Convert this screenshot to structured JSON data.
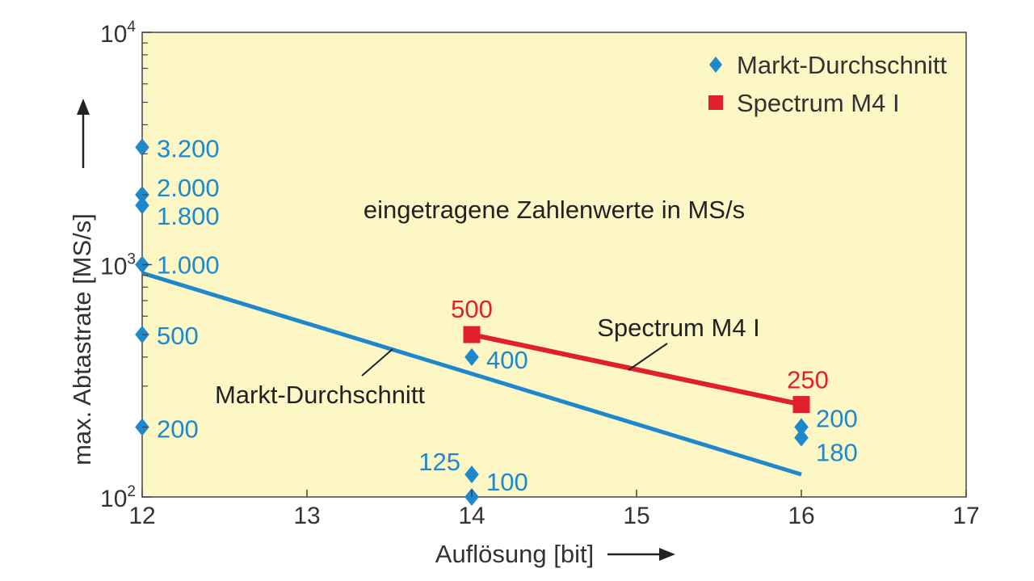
{
  "chart_data": {
    "type": "scatter",
    "xlabel": "Auflösung [bit]",
    "ylabel": "max. Abtastrate [MS/s]",
    "xlim": [
      12,
      17
    ],
    "ylim": [
      100,
      10000
    ],
    "yscale": "log",
    "x_ticks": [
      "12",
      "13",
      "14",
      "15",
      "16",
      "17"
    ],
    "y_ticks": [
      {
        "base": "10",
        "exp": "2",
        "value": 100
      },
      {
        "base": "10",
        "exp": "3",
        "value": 1000
      },
      {
        "base": "10",
        "exp": "4",
        "value": 10000
      }
    ],
    "grid": false,
    "legend": {
      "position": "top-right",
      "entries": [
        {
          "name": "Markt-Durchschnitt",
          "marker": "diamond",
          "color": "#1e88cc"
        },
        {
          "name": "Spectrum M4 I",
          "marker": "square",
          "color": "#e0202a"
        }
      ]
    },
    "colors": {
      "background": "#fdf7c6",
      "market": "#1e88cc",
      "spectrum": "#e0202a"
    },
    "series": [
      {
        "name": "Markt-Durchschnitt",
        "marker": "diamond",
        "points": [
          {
            "x": 12,
            "y": 3200,
            "label": "3.200"
          },
          {
            "x": 12,
            "y": 2000,
            "label": "2.000"
          },
          {
            "x": 12,
            "y": 1800,
            "label": "1.800"
          },
          {
            "x": 12,
            "y": 1000,
            "label": "1.000"
          },
          {
            "x": 12,
            "y": 500,
            "label": "500"
          },
          {
            "x": 12,
            "y": 200,
            "label": "200"
          },
          {
            "x": 14,
            "y": 400,
            "label": "400"
          },
          {
            "x": 14,
            "y": 125,
            "label": "125"
          },
          {
            "x": 14,
            "y": 100,
            "label": "100"
          },
          {
            "x": 16,
            "y": 200,
            "label": "200"
          },
          {
            "x": 16,
            "y": 180,
            "label": "180"
          }
        ],
        "trendline": [
          {
            "x": 12,
            "y": 920
          },
          {
            "x": 16,
            "y": 125
          }
        ]
      },
      {
        "name": "Spectrum M4 I",
        "marker": "square",
        "points": [
          {
            "x": 14,
            "y": 500,
            "label": "500"
          },
          {
            "x": 16,
            "y": 250,
            "label": "250"
          }
        ]
      }
    ],
    "annotations": [
      {
        "text": "eingetragene Zahlenwerte in MS/s",
        "x": 14.5,
        "y": 1500
      },
      {
        "text": "Markt-Durchschnitt",
        "x": 13.45,
        "y": 300
      },
      {
        "text": "Spectrum M4 I",
        "x": 15.7,
        "y": 560
      }
    ]
  }
}
